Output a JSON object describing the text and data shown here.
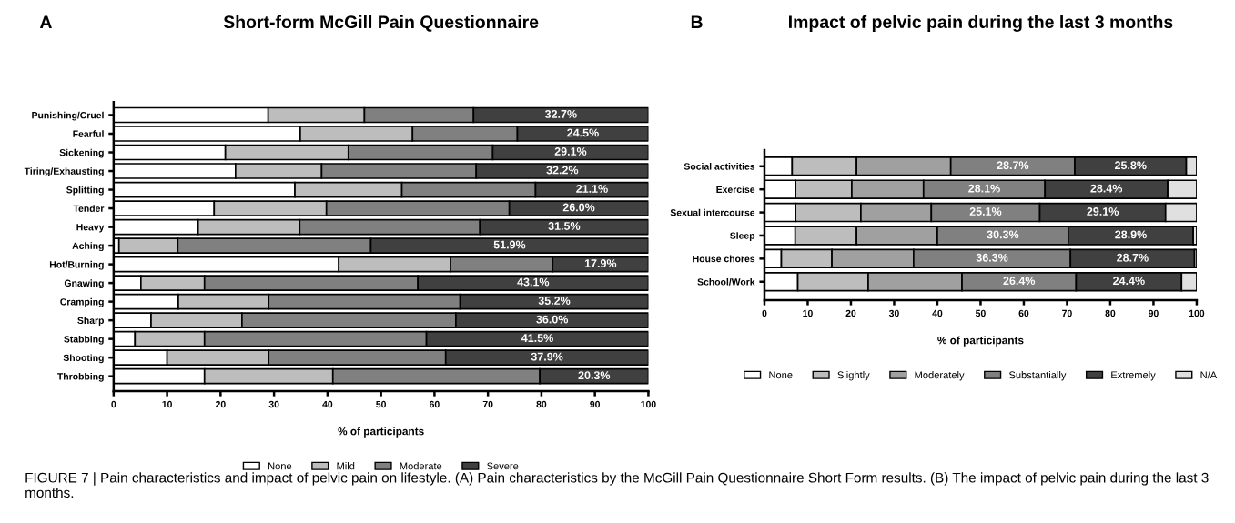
{
  "chart_data": [
    {
      "type": "bar",
      "orientation": "horizontal",
      "stacked": true,
      "title": "Short-form McGill Pain Questionnaire",
      "xlabel": "% of participants",
      "xlim": [
        0,
        100
      ],
      "xticks": [
        0,
        10,
        20,
        30,
        40,
        50,
        60,
        70,
        80,
        90,
        100
      ],
      "grid": false,
      "legend": "bottom",
      "categories": [
        "Punishing/Cruel",
        "Fearful",
        "Sickening",
        "Tiring/Exhausting",
        "Splitting",
        "Tender",
        "Heavy",
        "Aching",
        "Hot/Burning",
        "Gnawing",
        "Cramping",
        "Sharp",
        "Stabbing",
        "Shooting",
        "Throbbing"
      ],
      "series": [
        {
          "name": "None",
          "color": "#ffffff",
          "values": [
            28.9,
            34.9,
            20.9,
            22.8,
            33.9,
            18.8,
            15.8,
            1.0,
            42.1,
            5.1,
            12.1,
            7.0,
            4.0,
            10.0,
            17.0
          ]
        },
        {
          "name": "Mild",
          "color": "#bdbdbd",
          "values": [
            18.0,
            21.0,
            23.0,
            16.1,
            20.0,
            21.0,
            19.0,
            11.0,
            20.9,
            11.9,
            16.9,
            17.0,
            13.0,
            19.0,
            24.0
          ]
        },
        {
          "name": "Moderate",
          "color": "#808080",
          "values": [
            20.4,
            19.6,
            27.0,
            28.9,
            25.0,
            34.2,
            33.7,
            36.1,
            19.1,
            39.9,
            35.8,
            40.0,
            41.5,
            33.1,
            38.7
          ]
        },
        {
          "name": "Severe",
          "color": "#404040",
          "values": [
            32.7,
            24.5,
            29.1,
            32.2,
            21.1,
            26.0,
            31.5,
            51.9,
            17.9,
            43.1,
            35.2,
            36.0,
            41.5,
            37.9,
            20.3
          ],
          "value_labels": [
            "32.7%",
            "24.5%",
            "29.1%",
            "32.2%",
            "21.1%",
            "26.0%",
            "31.5%",
            "51.9%",
            "17.9%",
            "43.1%",
            "35.2%",
            "36.0%",
            "41.5%",
            "37.9%",
            "20.3%"
          ]
        }
      ],
      "annotations": [
        "A",
        "FIGURE 7 | Pain characteristics and impact of pelvic pain on lifestyle. (A) Pain characteristics by the McGill Pain Questionnaire Short Form results. (B) The impact of pelvic pain during the last 3 months."
      ]
    },
    {
      "type": "bar",
      "orientation": "horizontal",
      "stacked": true,
      "title": "Impact of pelvic pain during the last 3 months",
      "xlabel": "% of participants",
      "xlim": [
        0,
        100
      ],
      "xticks": [
        0,
        10,
        20,
        30,
        40,
        50,
        60,
        70,
        80,
        90,
        100
      ],
      "grid": false,
      "legend": "bottom",
      "categories": [
        "Social activities",
        "Exercise",
        "Sexual intercourse",
        "Sleep",
        "House chores",
        "School/Work"
      ],
      "series": [
        {
          "name": "None",
          "color": "#ffffff",
          "values": [
            6.4,
            7.2,
            7.2,
            7.1,
            3.9,
            7.7
          ]
        },
        {
          "name": "Slightly",
          "color": "#bdbdbd",
          "values": [
            14.9,
            13.0,
            15.1,
            14.2,
            11.7,
            16.3
          ]
        },
        {
          "name": "Moderately",
          "color": "#a0a0a0",
          "values": [
            21.8,
            16.6,
            16.3,
            18.7,
            18.9,
            21.7
          ]
        },
        {
          "name": "Substantially",
          "color": "#808080",
          "values": [
            28.7,
            28.1,
            25.1,
            30.3,
            36.3,
            26.4
          ],
          "value_labels": [
            "28.7%",
            "28.1%",
            "25.1%",
            "30.3%",
            "36.3%",
            "26.4%"
          ]
        },
        {
          "name": "Extremely",
          "color": "#404040",
          "values": [
            25.8,
            28.4,
            29.1,
            28.9,
            28.7,
            24.4
          ],
          "value_labels": [
            "25.8%",
            "28.4%",
            "29.1%",
            "28.9%",
            "28.7%",
            "24.4%"
          ]
        },
        {
          "name": "N/A",
          "color": "#e0e0e0",
          "values": [
            2.4,
            6.7,
            7.2,
            0.8,
            0.5,
            3.5
          ]
        }
      ],
      "annotations": [
        "B"
      ]
    }
  ]
}
